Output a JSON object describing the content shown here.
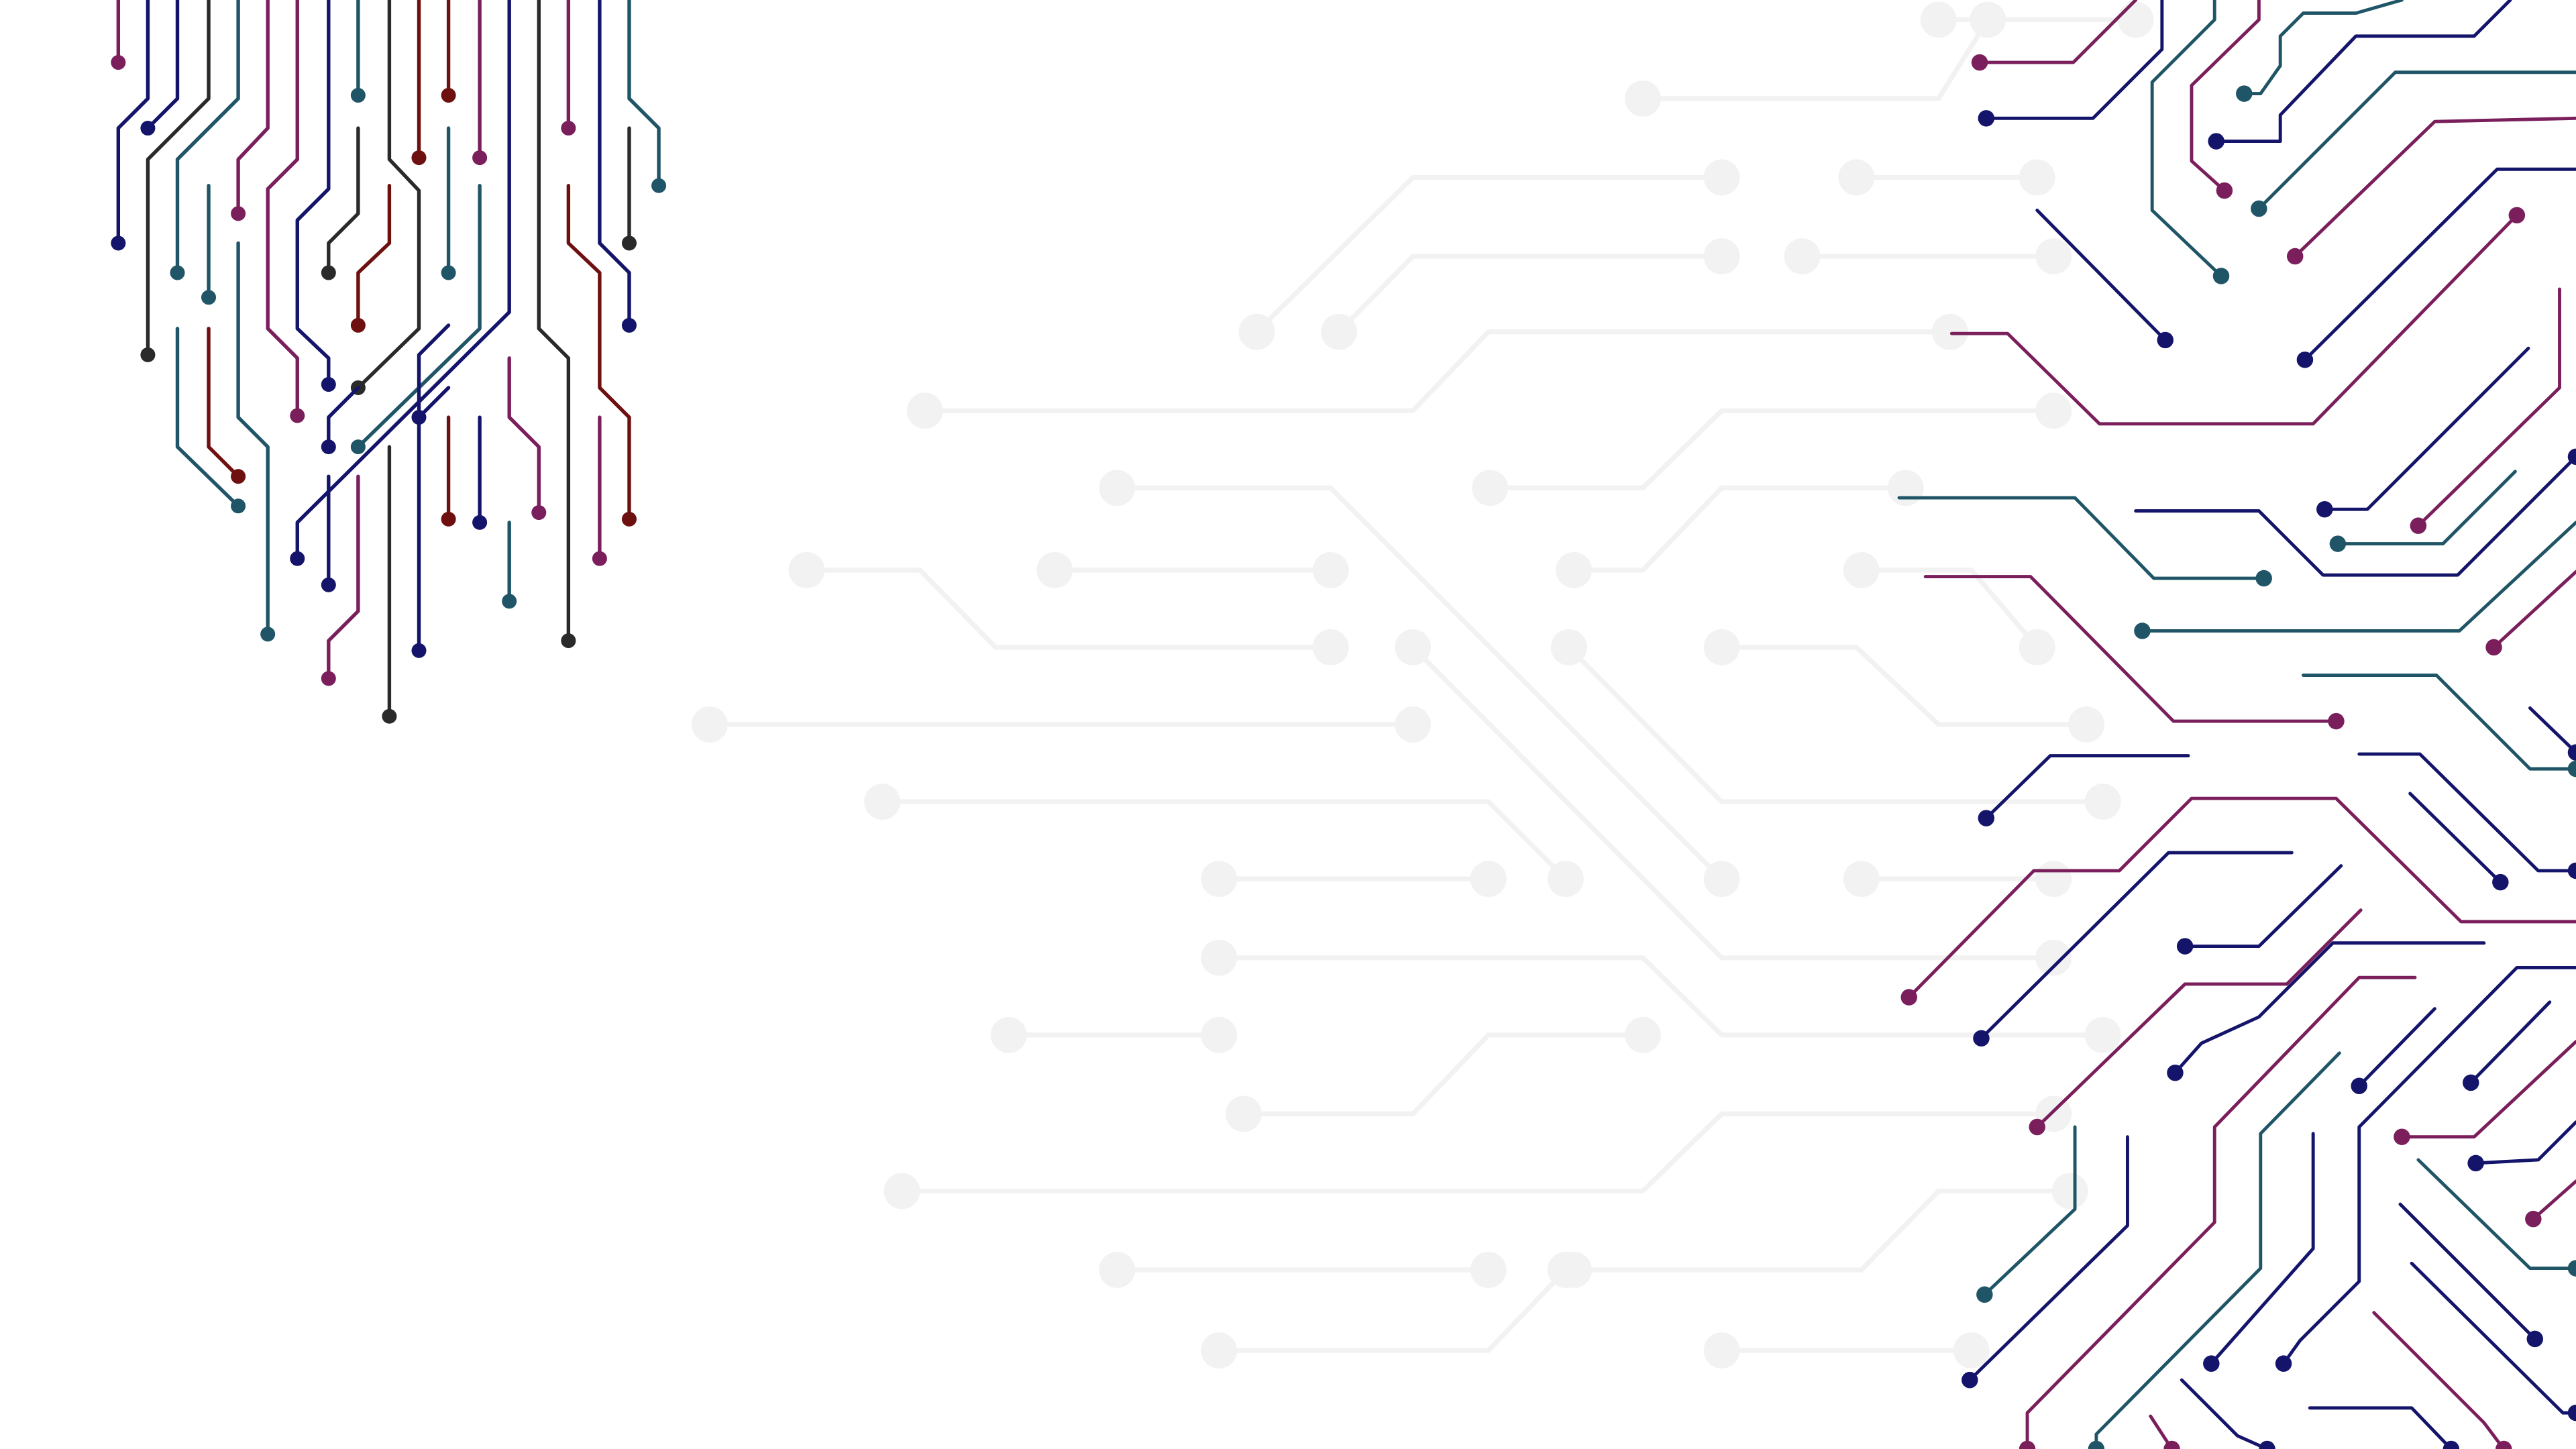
{
  "canvas": {
    "background": "#ffffff"
  },
  "palette": {
    "navy": "#14146b",
    "plum": "#7a1f5c",
    "teal": "#1f5566",
    "maroon": "#6e1010",
    "charcoal": "#2a2a2a",
    "ghost_trace": "#f2f2f2",
    "ghost_pad": "#ececec"
  },
  "artwork": {
    "subject": "circuit-board-traces",
    "regions": [
      "top-left-cluster",
      "center-faint-traces",
      "right-dense-cluster"
    ]
  }
}
